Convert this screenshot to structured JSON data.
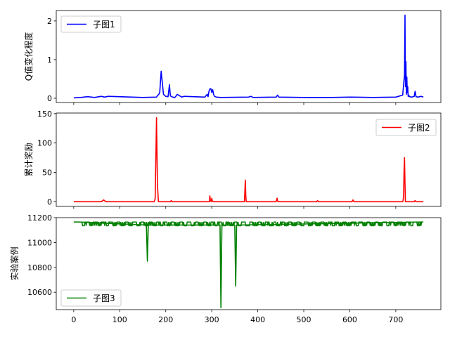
{
  "chart_data": [
    {
      "type": "line",
      "ylabel": "Q值变化程度",
      "legend": {
        "label": "子图1",
        "placement": "upper-left"
      },
      "color": "#0000ff",
      "xlim": [
        -38,
        798
      ],
      "ylim": [
        -0.11,
        2.27
      ],
      "yticks": [
        0,
        1,
        2
      ],
      "baseline": 0.01,
      "series": [
        {
          "name": "子图1",
          "x": [
            0,
            15,
            30,
            45,
            60,
            67,
            75,
            150,
            180,
            183,
            185,
            187,
            190,
            195,
            200,
            205,
            208,
            210,
            215,
            220,
            225,
            235,
            240,
            285,
            290,
            292,
            294,
            296,
            298,
            300,
            302,
            304,
            306,
            310,
            320,
            380,
            385,
            390,
            440,
            443,
            446,
            500,
            530,
            560,
            600,
            650,
            700,
            715,
            717,
            719,
            720,
            721,
            722,
            723,
            724,
            725,
            726,
            727,
            728,
            730,
            735,
            740,
            742,
            744,
            748,
            755,
            760
          ],
          "y": [
            0.01,
            0.02,
            0.04,
            0.02,
            0.05,
            0.03,
            0.05,
            0.02,
            0.03,
            0.08,
            0.1,
            0.15,
            0.7,
            0.1,
            0.05,
            0.04,
            0.35,
            0.06,
            0.03,
            0.02,
            0.1,
            0.03,
            0.05,
            0.03,
            0.1,
            0.04,
            0.18,
            0.24,
            0.25,
            0.15,
            0.22,
            0.1,
            0.05,
            0.03,
            0.02,
            0.03,
            0.05,
            0.02,
            0.03,
            0.08,
            0.03,
            0.02,
            0.02,
            0.02,
            0.03,
            0.02,
            0.03,
            0.08,
            0.35,
            0.6,
            2.15,
            0.3,
            0.95,
            0.1,
            0.55,
            0.15,
            0.3,
            0.05,
            0.08,
            0.04,
            0.03,
            0.05,
            0.18,
            0.04,
            0.03,
            0.05,
            0.03
          ]
        }
      ]
    },
    {
      "type": "line",
      "ylabel": "累计奖励",
      "legend": {
        "label": "子图2",
        "placement": "upper-right"
      },
      "color": "#ff0000",
      "xlim": [
        -38,
        798
      ],
      "ylim": [
        -8,
        151
      ],
      "yticks": [
        0,
        50,
        100,
        150
      ],
      "baseline": 0,
      "series": [
        {
          "name": "子图2",
          "x": [
            0,
            60,
            65,
            70,
            175,
            177,
            178,
            180,
            182,
            184,
            210,
            212,
            214,
            295,
            296,
            297,
            299,
            300,
            301,
            303,
            371,
            372,
            373,
            374,
            375,
            440,
            441,
            442,
            443,
            444,
            528,
            530,
            532,
            605,
            607,
            609,
            715,
            716,
            717,
            718,
            719,
            720,
            721,
            740,
            742,
            744,
            760
          ],
          "y": [
            0,
            0,
            3,
            0,
            0,
            5,
            50,
            143,
            30,
            0,
            0,
            2,
            0,
            0,
            10,
            2,
            0,
            6,
            2,
            0,
            0,
            20,
            37,
            10,
            0,
            0,
            3,
            6,
            2,
            0,
            0,
            2,
            0,
            0,
            3,
            0,
            0,
            2,
            10,
            55,
            75,
            30,
            0,
            0,
            2,
            0,
            0
          ]
        }
      ]
    },
    {
      "type": "line",
      "ylabel": "实验案例",
      "legend": {
        "label": "子图3",
        "placement": "lower-left"
      },
      "color": "#008000",
      "xlabel": "",
      "xlim": [
        -38,
        798
      ],
      "ylim": [
        10460,
        11200
      ],
      "yticks": [
        10600,
        10800,
        11000,
        11200
      ],
      "xticks": [
        0,
        100,
        200,
        300,
        400,
        500,
        600,
        700
      ],
      "band": {
        "high": 11165,
        "low": 11135
      },
      "series": [
        {
          "name": "子图3",
          "x": [
            0,
            10,
            158,
            160,
            162,
            318,
            320,
            322,
            350,
            352,
            354,
            760
          ],
          "y": [
            11165,
            11165,
            11140,
            10850,
            11140,
            11140,
            10475,
            11140,
            11140,
            10650,
            11140,
            11165
          ]
        }
      ]
    }
  ]
}
